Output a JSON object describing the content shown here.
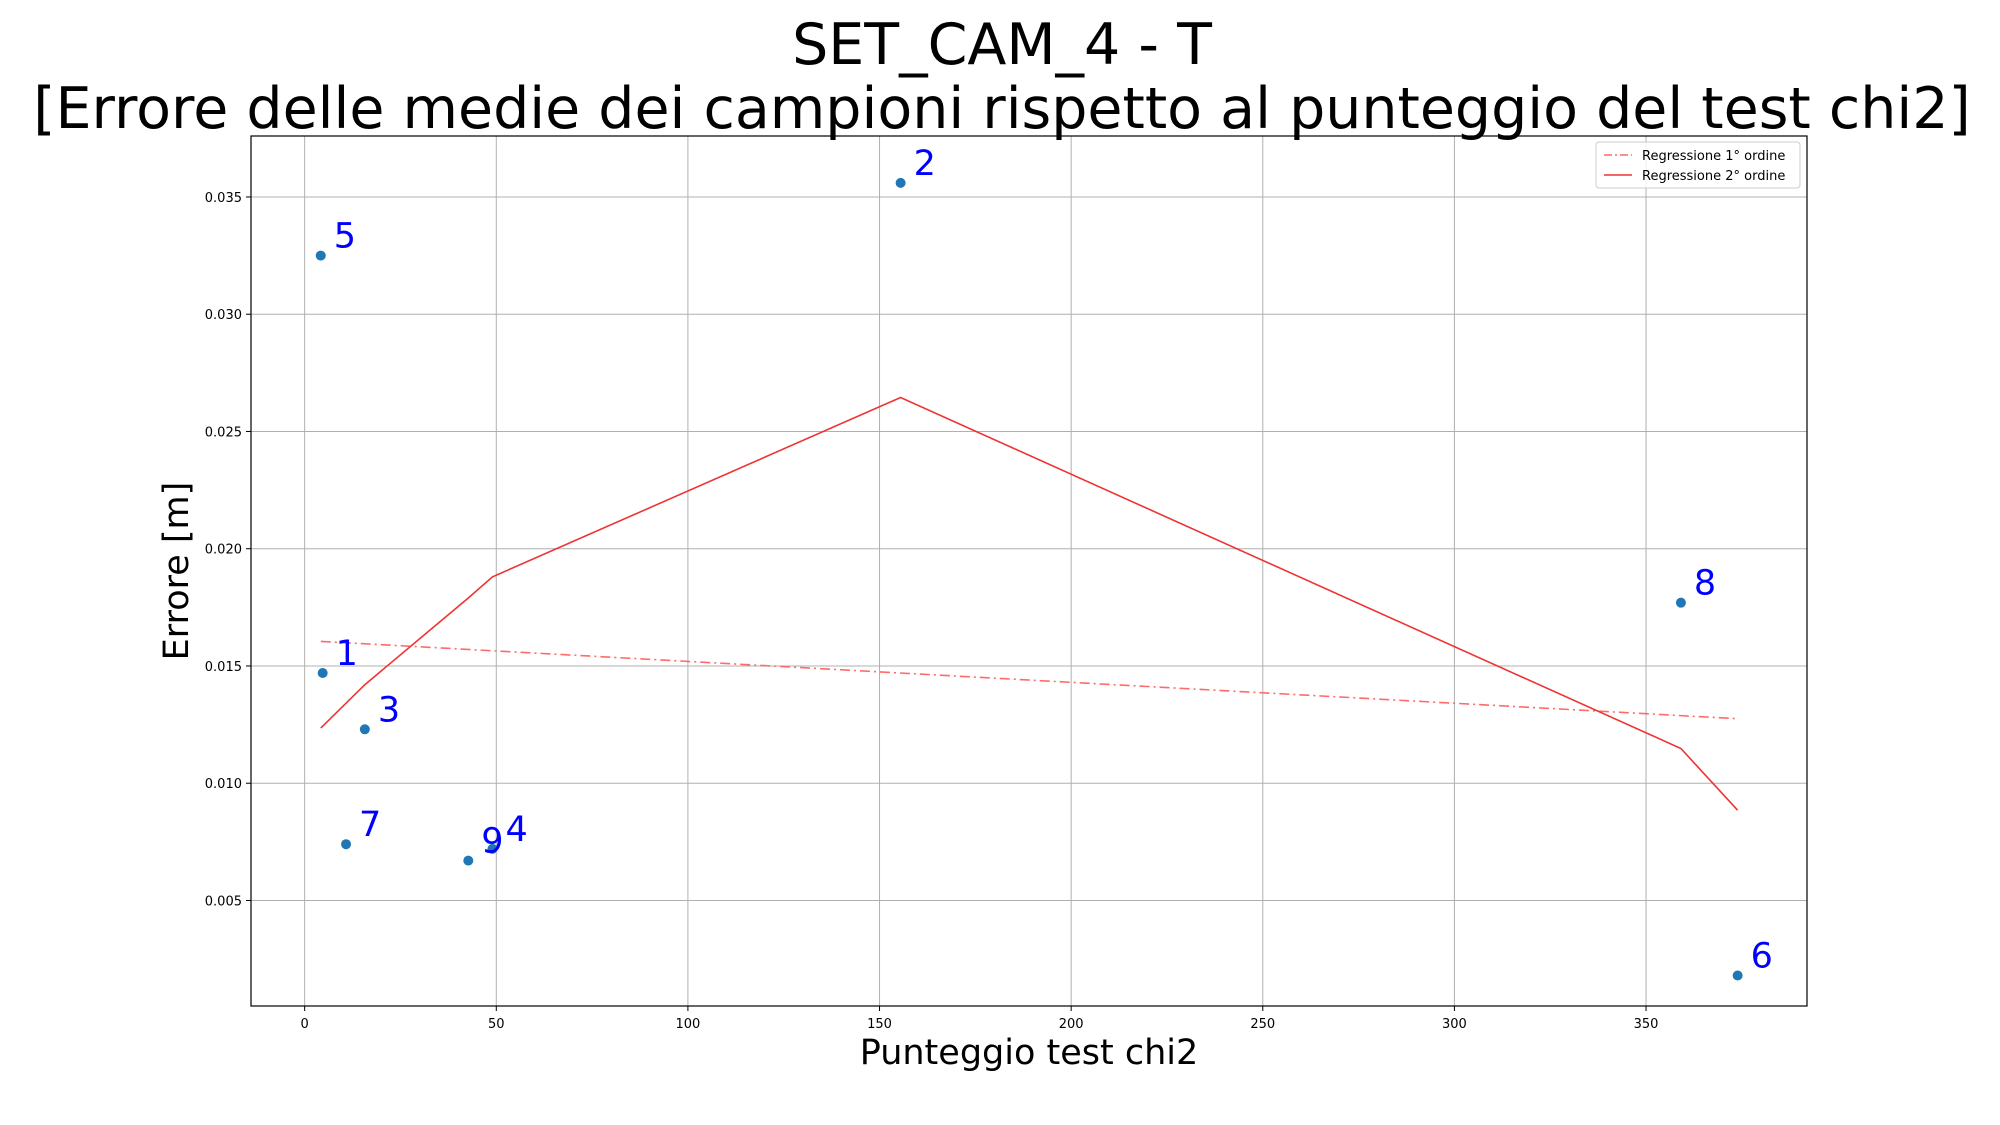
{
  "chart_data": {
    "type": "scatter",
    "title": "SET_CAM_4 - T",
    "subtitle": "[Errore delle medie dei campioni rispetto al punteggio del test chi2]",
    "xlabel": "Punteggio test chi2",
    "ylabel": "Errore [m]",
    "xlim": [
      -14,
      392
    ],
    "ylim": [
      0.0005,
      0.0376
    ],
    "xticks": [
      0,
      50,
      100,
      150,
      200,
      250,
      300,
      350
    ],
    "yticks": [
      0.005,
      0.01,
      0.015,
      0.02,
      0.025,
      0.03,
      0.035
    ],
    "ytick_labels": [
      "0.005",
      "0.010",
      "0.015",
      "0.020",
      "0.025",
      "0.030",
      "0.035"
    ],
    "grid": true,
    "legend_position": "top-right",
    "points": [
      {
        "label": "1",
        "x": 4.7,
        "y": 0.0147
      },
      {
        "label": "2",
        "x": 155.5,
        "y": 0.0356
      },
      {
        "label": "3",
        "x": 15.7,
        "y": 0.0123
      },
      {
        "label": "4",
        "x": 49.0,
        "y": 0.0072
      },
      {
        "label": "5",
        "x": 4.2,
        "y": 0.0325
      },
      {
        "label": "6",
        "x": 373.9,
        "y": 0.0018
      },
      {
        "label": "7",
        "x": 10.8,
        "y": 0.0074
      },
      {
        "label": "8",
        "x": 359.1,
        "y": 0.0177
      },
      {
        "label": "9",
        "x": 42.7,
        "y": 0.0067
      }
    ],
    "series": [
      {
        "name": "Regressione 1° ordine",
        "style": "dashdot",
        "color": "#ff6b6b",
        "x": [
          4.2,
          373.9
        ],
        "y": [
          0.01605,
          0.01275
        ]
      },
      {
        "name": "Regressione 2° ordine",
        "style": "solid",
        "color": "#ee3333",
        "x": [
          4.2,
          15.7,
          42.7,
          49.0,
          155.5,
          359.1,
          373.9
        ],
        "y": [
          0.01235,
          0.0142,
          0.0179,
          0.0188,
          0.02645,
          0.01148,
          0.00885
        ]
      }
    ],
    "colors": {
      "points": "#1f77b4",
      "point_labels": "#0000ff",
      "grid": "#b0b0b0"
    }
  }
}
